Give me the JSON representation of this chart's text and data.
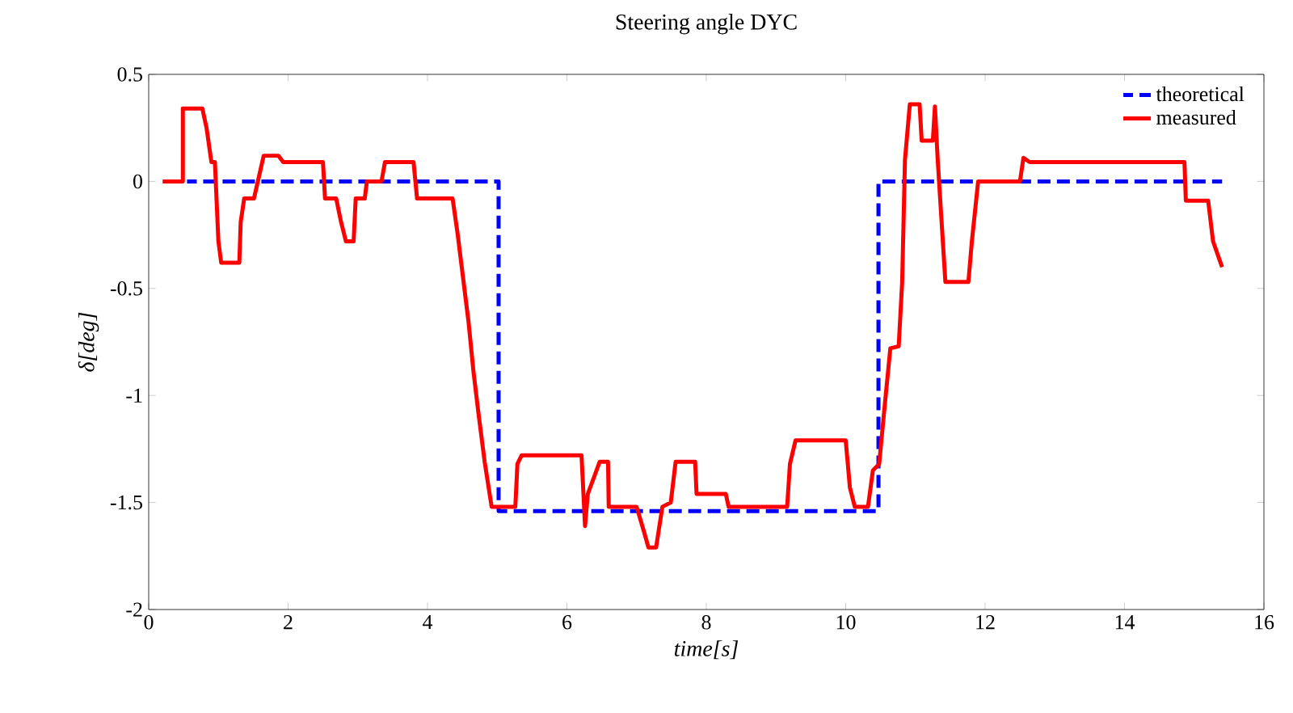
{
  "chart_data": {
    "type": "line",
    "title": "Steering angle DYC",
    "xlabel": "time[s]",
    "ylabel": "δ[deg]",
    "xlim": [
      0,
      16
    ],
    "ylim": [
      -2,
      0.5
    ],
    "xticks": [
      0,
      2,
      4,
      6,
      8,
      10,
      12,
      14,
      16
    ],
    "yticks": [
      -2,
      -1.5,
      -1,
      -0.5,
      0,
      0.5
    ],
    "legend": "top right",
    "grid": false,
    "series": [
      {
        "name": "theoretical",
        "color": "#0000ff",
        "line_style": "dashed",
        "x": [
          0.55,
          5.02,
          5.02,
          10.47,
          10.47,
          15.4
        ],
        "values": [
          0,
          0,
          -1.54,
          -1.54,
          0,
          0
        ]
      },
      {
        "name": "measured",
        "color": "#ff0000",
        "line_style": "solid",
        "x": [
          0.2,
          0.49,
          0.49,
          0.77,
          0.83,
          0.9,
          0.95,
          1.0,
          1.04,
          1.3,
          1.32,
          1.37,
          1.51,
          1.58,
          1.65,
          1.86,
          1.93,
          2.5,
          2.53,
          2.69,
          2.76,
          2.83,
          2.94,
          2.97,
          3.1,
          3.13,
          3.34,
          3.39,
          3.8,
          3.85,
          4.36,
          4.43,
          4.59,
          4.66,
          4.73,
          4.82,
          4.92,
          5.26,
          5.29,
          5.35,
          6.21,
          6.26,
          6.3,
          6.47,
          6.59,
          6.6,
          7.0,
          7.1,
          7.17,
          7.28,
          7.37,
          7.49,
          7.56,
          7.84,
          7.86,
          8.28,
          8.32,
          9.16,
          9.2,
          9.28,
          10.0,
          10.06,
          10.13,
          10.32,
          10.39,
          10.48,
          10.55,
          10.64,
          10.76,
          10.81,
          10.85,
          10.92,
          11.06,
          11.09,
          11.25,
          11.28,
          11.32,
          11.43,
          11.76,
          11.81,
          11.9,
          12.5,
          12.55,
          12.64,
          14.86,
          14.88,
          15.2,
          15.27,
          15.4
        ],
        "values": [
          0,
          0,
          0.34,
          0.34,
          0.25,
          0.09,
          0.09,
          -0.28,
          -0.38,
          -0.38,
          -0.19,
          -0.08,
          -0.08,
          0.02,
          0.12,
          0.12,
          0.09,
          0.09,
          -0.08,
          -0.08,
          -0.19,
          -0.28,
          -0.28,
          -0.08,
          -0.08,
          0,
          0,
          0.09,
          0.09,
          -0.08,
          -0.08,
          -0.24,
          -0.66,
          -0.89,
          -1.08,
          -1.31,
          -1.52,
          -1.52,
          -1.32,
          -1.28,
          -1.28,
          -1.61,
          -1.46,
          -1.31,
          -1.31,
          -1.52,
          -1.52,
          -1.63,
          -1.71,
          -1.71,
          -1.52,
          -1.5,
          -1.31,
          -1.31,
          -1.46,
          -1.46,
          -1.52,
          -1.52,
          -1.32,
          -1.21,
          -1.21,
          -1.43,
          -1.52,
          -1.52,
          -1.35,
          -1.32,
          -1.08,
          -0.78,
          -0.77,
          -0.47,
          0.1,
          0.36,
          0.36,
          0.19,
          0.19,
          0.35,
          0.1,
          -0.47,
          -0.47,
          -0.28,
          0,
          0,
          0.11,
          0.09,
          0.09,
          -0.09,
          -0.09,
          -0.28,
          -0.4
        ]
      }
    ]
  }
}
